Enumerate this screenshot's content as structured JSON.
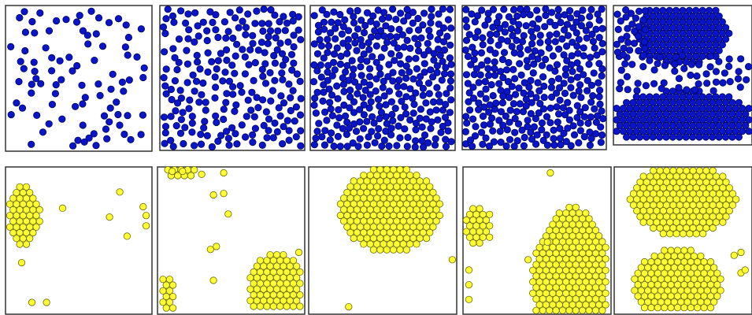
{
  "figure": {
    "colors": {
      "blue_fill": "#0a14c8",
      "blue_stroke": "#00085a",
      "yellow_fill": "#ffff33",
      "yellow_stroke": "#6b6b00",
      "frame": "#333333"
    },
    "panels": [
      {
        "row": "top",
        "color": "blue",
        "style": "random",
        "particle_count": 90
      },
      {
        "row": "top",
        "color": "blue",
        "style": "random",
        "particle_count": 230
      },
      {
        "row": "top",
        "color": "blue",
        "style": "random",
        "particle_count": 340
      },
      {
        "row": "top",
        "color": "blue",
        "style": "random",
        "particle_count": 420
      },
      {
        "row": "top",
        "color": "blue",
        "style": "segregated",
        "particle_count": 650
      },
      {
        "row": "bottom",
        "color": "yellow",
        "style": "clustered",
        "particle_count": 120
      },
      {
        "row": "bottom",
        "color": "yellow",
        "style": "clustered",
        "particle_count": 230
      },
      {
        "row": "bottom",
        "color": "yellow",
        "style": "clustered",
        "particle_count": 340
      },
      {
        "row": "bottom",
        "color": "yellow",
        "style": "clustered",
        "particle_count": 420
      },
      {
        "row": "bottom",
        "color": "yellow",
        "style": "clustered",
        "particle_count": 650
      }
    ]
  }
}
